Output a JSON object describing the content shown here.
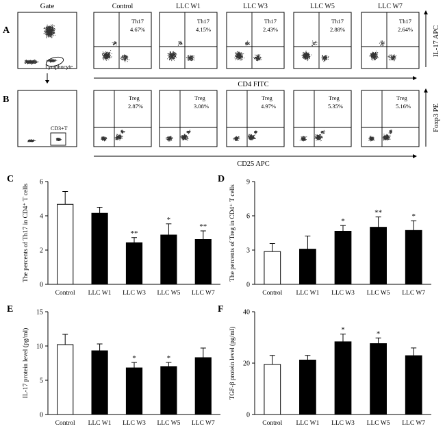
{
  "flow": {
    "panel_a_letter": "A",
    "panel_b_letter": "B",
    "gate_title": "Gate",
    "gate_label_lymphocyte": "Lymphocyte",
    "gate_label_cd3": "CD3+T",
    "row_a": {
      "quadrant_label": "Th17",
      "x_axis": "CD4 FITC",
      "y_axis": "IL-17 APC",
      "panels": [
        {
          "title": "Control",
          "percent": "4.67%"
        },
        {
          "title": "LLC W1",
          "percent": "4.15%"
        },
        {
          "title": "LLC W3",
          "percent": "2.43%"
        },
        {
          "title": "LLC W5",
          "percent": "2.88%"
        },
        {
          "title": "LLC W7",
          "percent": "2.64%"
        }
      ]
    },
    "row_b": {
      "quadrant_label": "Treg",
      "x_axis": "CD25 APC",
      "y_axis": "Foxp3 PE",
      "panels": [
        {
          "percent": "2.87%"
        },
        {
          "percent": "3.08%"
        },
        {
          "percent": "4.97%"
        },
        {
          "percent": "5.35%"
        },
        {
          "percent": "5.16%"
        }
      ]
    }
  },
  "chart_data": [
    {
      "panel": "C",
      "type": "bar",
      "categories": [
        "Control",
        "LLC W1",
        "LLC W3",
        "LLC W5",
        "LLC W7"
      ],
      "values": [
        4.67,
        4.15,
        2.43,
        2.88,
        2.62
      ],
      "errors": [
        0.75,
        0.35,
        0.3,
        0.65,
        0.5
      ],
      "significance": [
        "",
        "",
        "**",
        "*",
        "**"
      ],
      "fills": [
        "#ffffff",
        "#000000",
        "#000000",
        "#000000",
        "#000000"
      ],
      "ylabel": "The percents of Th17 in CD4⁺ T cells",
      "ylim": [
        0,
        6
      ],
      "yticks": [
        0,
        2,
        4,
        6
      ]
    },
    {
      "panel": "D",
      "type": "bar",
      "categories": [
        "Control",
        "LLC W1",
        "LLC W3",
        "LLC W5",
        "LLC W7"
      ],
      "values": [
        2.87,
        3.08,
        4.65,
        5.0,
        4.72
      ],
      "errors": [
        0.7,
        1.15,
        0.5,
        0.9,
        0.85
      ],
      "significance": [
        "",
        "",
        "*",
        "**",
        "*"
      ],
      "fills": [
        "#ffffff",
        "#000000",
        "#000000",
        "#000000",
        "#000000"
      ],
      "ylabel": "The percents of Treg in CD4⁺ T cells",
      "ylim": [
        0,
        9
      ],
      "yticks": [
        0,
        3,
        6,
        9
      ]
    },
    {
      "panel": "E",
      "type": "bar",
      "categories": [
        "Control",
        "LLC W1",
        "LLC W3",
        "LLC W5",
        "LLC W7"
      ],
      "values": [
        10.2,
        9.3,
        6.8,
        7.0,
        8.3
      ],
      "errors": [
        1.5,
        1.0,
        0.8,
        0.6,
        1.4
      ],
      "significance": [
        "",
        "",
        "*",
        "*",
        ""
      ],
      "fills": [
        "#ffffff",
        "#000000",
        "#000000",
        "#000000",
        "#000000"
      ],
      "ylabel": "IL-17 protein level  (pg/ml)",
      "ylim": [
        0,
        15
      ],
      "yticks": [
        0,
        5,
        10,
        15
      ]
    },
    {
      "panel": "F",
      "type": "bar",
      "categories": [
        "Control",
        "LLC W1",
        "LLC W3",
        "LLC W5",
        "LLC W7"
      ],
      "values": [
        19.5,
        21.2,
        28.3,
        27.6,
        22.9
      ],
      "errors": [
        3.5,
        1.8,
        3.0,
        2.2,
        3.0
      ],
      "significance": [
        "",
        "",
        "*",
        "*",
        ""
      ],
      "fills": [
        "#ffffff",
        "#000000",
        "#000000",
        "#000000",
        "#000000"
      ],
      "ylabel": "TGF-β protein level  (pg/ml)",
      "ylim": [
        0,
        40
      ],
      "yticks": [
        0,
        20,
        40
      ]
    }
  ]
}
